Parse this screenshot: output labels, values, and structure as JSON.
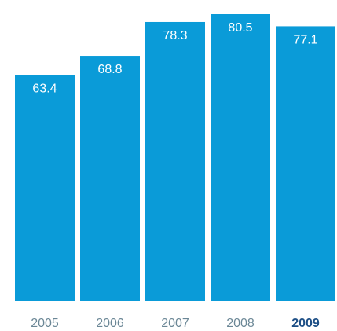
{
  "chart_data": {
    "type": "bar",
    "title": "",
    "xlabel": "",
    "ylabel": "",
    "categories": [
      "2005",
      "2006",
      "2007",
      "2008",
      "2009"
    ],
    "values": [
      63.4,
      68.8,
      78.3,
      80.5,
      77.1
    ],
    "value_labels": [
      "63.4",
      "68.8",
      "78.3",
      "80.5",
      "77.1"
    ],
    "ylim": [
      0,
      80.5
    ],
    "grid": false,
    "legend": "none",
    "highlight_index": 4,
    "colors": {
      "bar": "#0a9bd8",
      "bar_label": "#ffffff",
      "tick_label": "#6b8796",
      "tick_label_highlight": "#1d4f86"
    }
  }
}
